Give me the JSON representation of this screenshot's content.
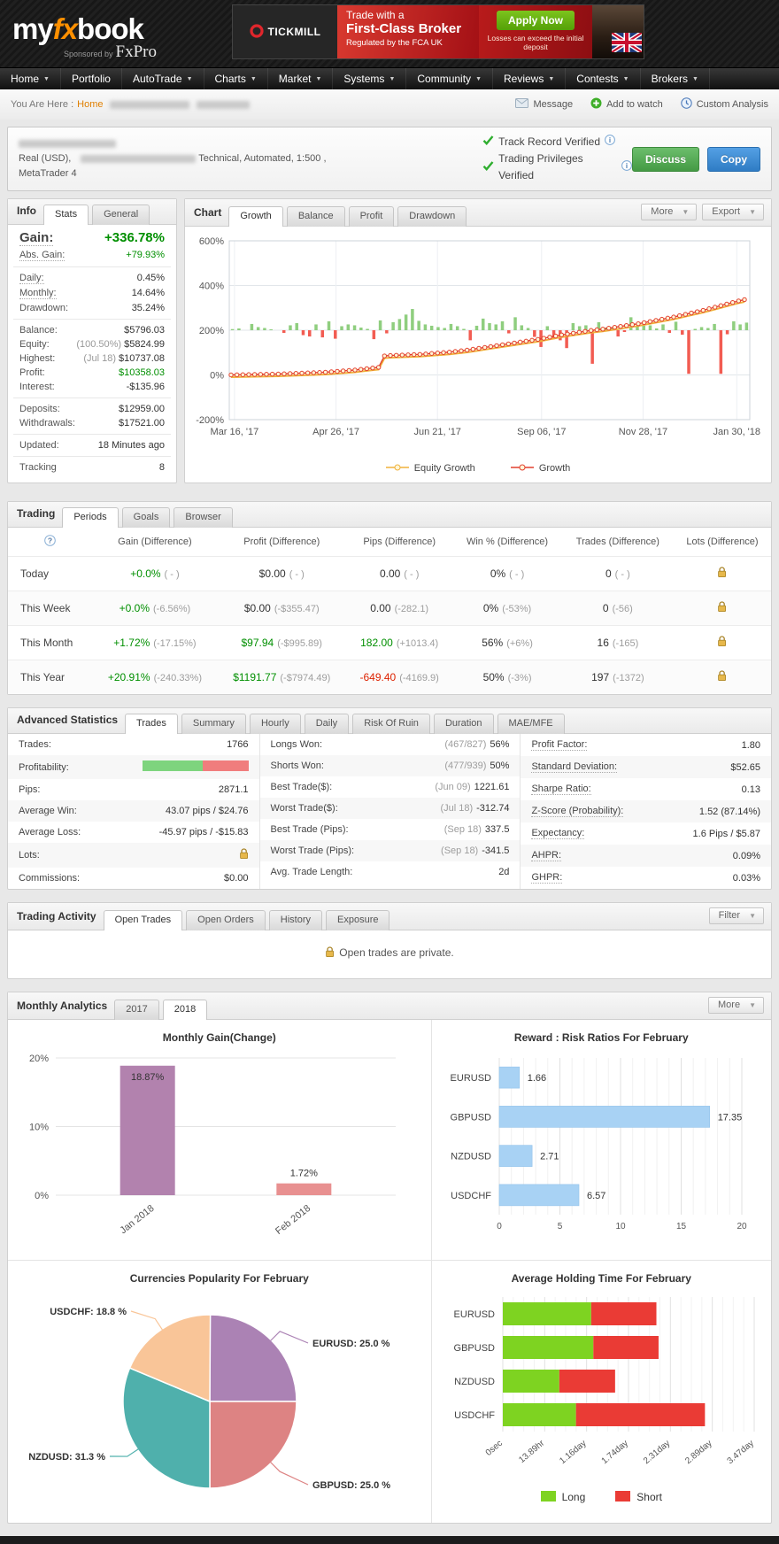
{
  "brand": {
    "logo_my": "my",
    "logo_fx": "fx",
    "logo_book": "book",
    "sponsored": "Sponsored by",
    "sponsor_name": "FxPro"
  },
  "ad": {
    "brand": "TICKMILL",
    "line1": "Trade with a",
    "line2": "First-Class Broker",
    "line3": "Regulated by the FCA UK",
    "cta": "Apply Now",
    "disclaimer": "Losses can exceed the initial deposit"
  },
  "nav": {
    "items": [
      {
        "label": "Home",
        "caret": true
      },
      {
        "label": "Portfolio",
        "caret": false
      },
      {
        "label": "AutoTrade",
        "caret": true
      },
      {
        "label": "Charts",
        "caret": true
      },
      {
        "label": "Market",
        "caret": true
      },
      {
        "label": "Systems",
        "caret": true
      },
      {
        "label": "Community",
        "caret": true
      },
      {
        "label": "Reviews",
        "caret": true
      },
      {
        "label": "Contests",
        "caret": true
      },
      {
        "label": "Brokers",
        "caret": true
      }
    ]
  },
  "breadcrumb": {
    "prefix": "You Are Here :",
    "home": "Home",
    "actions": [
      {
        "label": "Message",
        "icon": "envelope-icon"
      },
      {
        "label": "Add to watch",
        "icon": "add-icon"
      },
      {
        "label": "Custom Analysis",
        "icon": "analysis-icon"
      }
    ]
  },
  "account": {
    "meta1": "Real (USD),",
    "meta2": "Technical, Automated, 1:500 , MetaTrader 4",
    "verified1": "Track Record Verified",
    "verified2": "Trading Privileges Verified",
    "discuss": "Discuss",
    "copy": "Copy"
  },
  "info": {
    "title": "Info",
    "tabs": [
      "Stats",
      "General"
    ],
    "active_tab": "Stats",
    "groups": [
      [
        {
          "label": "Gain:",
          "value": "+336.78%",
          "cls": "green",
          "dotted": true,
          "big": true
        },
        {
          "label": "Abs. Gain:",
          "value": "+79.93%",
          "cls": "green",
          "dotted": true
        }
      ],
      [
        {
          "label": "Daily:",
          "value": "0.45%",
          "dotted": true
        },
        {
          "label": "Monthly:",
          "value": "14.64%",
          "dotted": true
        },
        {
          "label": "Drawdown:",
          "value": "35.24%"
        }
      ],
      [
        {
          "label": "Balance:",
          "value": "$5796.03"
        },
        {
          "label": "Equity:",
          "pre": "(100.50%)",
          "value": "$5824.99"
        },
        {
          "label": "Highest:",
          "pre": "(Jul 18)",
          "value": "$10737.08"
        },
        {
          "label": "Profit:",
          "value": "$10358.03",
          "cls": "green"
        },
        {
          "label": "Interest:",
          "value": "-$135.96"
        }
      ],
      [
        {
          "label": "Deposits:",
          "value": "$12959.00"
        },
        {
          "label": "Withdrawals:",
          "value": "$17521.00"
        }
      ],
      [
        {
          "label": "Updated:",
          "value": "18 Minutes ago"
        }
      ],
      [
        {
          "label": "Tracking",
          "value": "8"
        }
      ]
    ]
  },
  "chart_panel": {
    "title": "Chart",
    "tabs": [
      "Growth",
      "Balance",
      "Profit",
      "Drawdown"
    ],
    "active_tab": "Growth",
    "more": "More",
    "export": "Export"
  },
  "trading": {
    "title": "Trading",
    "tabs": [
      "Periods",
      "Goals",
      "Browser"
    ],
    "active_tab": "Periods",
    "columns": [
      "Gain (Difference)",
      "Profit (Difference)",
      "Pips (Difference)",
      "Win % (Difference)",
      "Trades (Difference)",
      "Lots (Difference)"
    ],
    "rows": [
      {
        "period": "Today",
        "cells": [
          {
            "main": "+0.0%",
            "diff": "( - )",
            "cls": "green"
          },
          {
            "main": "$0.00",
            "diff": "( - )"
          },
          {
            "main": "0.00",
            "diff": "( - )"
          },
          {
            "main": "0%",
            "diff": "( - )"
          },
          {
            "main": "0",
            "diff": "( - )"
          }
        ]
      },
      {
        "period": "This Week",
        "cells": [
          {
            "main": "+0.0%",
            "diff": "(-6.56%)",
            "cls": "green"
          },
          {
            "main": "$0.00",
            "diff": "(-$355.47)"
          },
          {
            "main": "0.00",
            "diff": "(-282.1)"
          },
          {
            "main": "0%",
            "diff": "(-53%)"
          },
          {
            "main": "0",
            "diff": "(-56)"
          }
        ]
      },
      {
        "period": "This Month",
        "cells": [
          {
            "main": "+1.72%",
            "diff": "(-17.15%)",
            "cls": "green"
          },
          {
            "main": "$97.94",
            "diff": "(-$995.89)",
            "cls": "green"
          },
          {
            "main": "182.00",
            "diff": "(+1013.4)",
            "cls": "green"
          },
          {
            "main": "56%",
            "diff": "(+6%)"
          },
          {
            "main": "16",
            "diff": "(-165)"
          }
        ]
      },
      {
        "period": "This Year",
        "cells": [
          {
            "main": "+20.91%",
            "diff": "(-240.33%)",
            "cls": "green"
          },
          {
            "main": "$1191.77",
            "diff": "(-$7974.49)",
            "cls": "green"
          },
          {
            "main": "-649.40",
            "diff": "(-4169.9)",
            "cls": "red"
          },
          {
            "main": "50%",
            "diff": "(-3%)"
          },
          {
            "main": "197",
            "diff": "(-1372)"
          }
        ]
      }
    ]
  },
  "advanced": {
    "title": "Advanced Statistics",
    "tabs": [
      "Trades",
      "Summary",
      "Hourly",
      "Daily",
      "Risk Of Ruin",
      "Duration",
      "MAE/MFE"
    ],
    "active_tab": "Trades",
    "col1": [
      {
        "label": "Trades:",
        "value": "1766"
      },
      {
        "label": "Profitability:",
        "widget": "profitability",
        "win_pct": 57
      },
      {
        "label": "Pips:",
        "value": "2871.1"
      },
      {
        "label": "Average Win:",
        "value": "43.07 pips / $24.76"
      },
      {
        "label": "Average Loss:",
        "value": "-45.97 pips / -$15.83"
      },
      {
        "label": "Lots:",
        "widget": "lock"
      },
      {
        "label": "Commissions:",
        "value": "$0.00"
      }
    ],
    "col2": [
      {
        "label": "Longs Won:",
        "pre": "(467/827)",
        "value": "56%"
      },
      {
        "label": "Shorts Won:",
        "pre": "(477/939)",
        "value": "50%"
      },
      {
        "label": "Best Trade($):",
        "pre": "(Jun 09)",
        "value": "1221.61"
      },
      {
        "label": "Worst Trade($):",
        "pre": "(Jul 18)",
        "value": "-312.74"
      },
      {
        "label": "Best Trade (Pips):",
        "pre": "(Sep 18)",
        "value": "337.5"
      },
      {
        "label": "Worst Trade (Pips):",
        "pre": "(Sep 18)",
        "value": "-341.5"
      },
      {
        "label": "Avg. Trade Length:",
        "value": "2d"
      }
    ],
    "col3": [
      {
        "label": "Profit Factor:",
        "value": "1.80",
        "dotted": true
      },
      {
        "label": "Standard Deviation:",
        "value": "$52.65",
        "dotted": true
      },
      {
        "label": "Sharpe Ratio:",
        "value": "0.13",
        "dotted": true
      },
      {
        "label": "Z-Score (Probability):",
        "value": "1.52 (87.14%)",
        "dotted": true
      },
      {
        "label": "Expectancy:",
        "value": "1.6 Pips / $5.87",
        "dotted": true
      },
      {
        "label": "AHPR:",
        "value": "0.09%",
        "dotted": true
      },
      {
        "label": "GHPR:",
        "value": "0.03%",
        "dotted": true
      }
    ]
  },
  "activity": {
    "title": "Trading Activity",
    "tabs": [
      "Open Trades",
      "Open Orders",
      "History",
      "Exposure"
    ],
    "active_tab": "Open Trades",
    "filter": "Filter",
    "message": "Open trades are private."
  },
  "monthly": {
    "title": "Monthly Analytics",
    "tabs": [
      "2017",
      "2018"
    ],
    "active_tab": "2018",
    "more": "More"
  },
  "chart_data": [
    {
      "id": "growth",
      "type": "line+bar",
      "title": "Growth",
      "ylim": [
        -200,
        600
      ],
      "y_ticks": [
        {
          "v": 600,
          "label": "600%"
        },
        {
          "v": 400,
          "label": "400%"
        },
        {
          "v": 200,
          "label": "200%"
        },
        {
          "v": 0,
          "label": "0%"
        },
        {
          "v": -200,
          "label": "-200%"
        }
      ],
      "x_ticks": [
        {
          "f": 0.01,
          "label": "Mar 16, '17"
        },
        {
          "f": 0.205,
          "label": "Apr 26, '17"
        },
        {
          "f": 0.4,
          "label": "Jun 21, '17"
        },
        {
          "f": 0.6,
          "label": "Sep 06, '17"
        },
        {
          "f": 0.795,
          "label": "Nov 28, '17"
        },
        {
          "f": 0.975,
          "label": "Jan 30, '18"
        }
      ],
      "series": [
        {
          "name": "Equity Growth",
          "color": "#f0b23c"
        },
        {
          "name": "Growth",
          "color": "#e2402e"
        }
      ],
      "line_values": [
        0,
        0.5,
        1,
        1.5,
        2,
        2.5,
        3,
        3.5,
        4,
        5,
        6,
        7,
        8,
        9,
        10,
        11,
        12,
        14,
        16,
        18,
        20,
        22,
        25,
        28,
        31,
        34,
        85,
        87,
        88,
        89,
        90,
        91,
        92,
        94,
        96,
        98,
        100,
        102,
        105,
        108,
        111,
        115,
        119,
        123,
        127,
        131,
        135,
        139,
        143,
        147,
        151,
        155,
        159,
        164,
        169,
        174,
        179,
        183,
        187,
        191,
        195,
        199,
        202,
        205,
        209,
        213,
        217,
        221,
        225,
        229,
        234,
        239,
        244,
        249,
        254,
        259,
        265,
        271,
        277,
        283,
        289,
        296,
        303,
        310,
        317,
        324,
        331,
        336.78
      ],
      "bar_baseline": 200,
      "bar_colors": {
        "pos": "#8fce7f",
        "neg": "#f25c52"
      },
      "bars": [
        5,
        8,
        0,
        28,
        14,
        10,
        4,
        0,
        -12,
        22,
        32,
        -22,
        -28,
        26,
        -32,
        40,
        -38,
        18,
        26,
        22,
        12,
        6,
        -40,
        44,
        -14,
        36,
        50,
        70,
        95,
        42,
        26,
        20,
        14,
        10,
        28,
        18,
        6,
        -45,
        20,
        52,
        32,
        26,
        40,
        -14,
        58,
        22,
        10,
        -30,
        -75,
        18,
        -40,
        -45,
        -80,
        32,
        18,
        22,
        -150,
        36,
        12,
        10,
        -28,
        -8,
        58,
        18,
        20,
        22,
        8,
        26,
        -12,
        38,
        -20,
        -195,
        6,
        14,
        10,
        28,
        -195,
        -18,
        40,
        26,
        34
      ]
    },
    {
      "id": "monthly_gain",
      "type": "bar",
      "title": "Monthly Gain(Change)",
      "categories": [
        "Jan 2018",
        "Feb 2018"
      ],
      "values": [
        18.87,
        1.72
      ],
      "labels": [
        "18.87%",
        "1.72%"
      ],
      "colors": [
        "#b282ae",
        "#e89090"
      ],
      "ylim": [
        0,
        20
      ],
      "y_ticks": [
        {
          "v": 0,
          "label": "0%"
        },
        {
          "v": 10,
          "label": "10%"
        },
        {
          "v": 20,
          "label": "20%"
        }
      ]
    },
    {
      "id": "reward_risk",
      "type": "hbar",
      "title": "Reward : Risk Ratios For February",
      "categories": [
        "EURUSD",
        "GBPUSD",
        "NZDUSD",
        "USDCHF"
      ],
      "values": [
        1.66,
        17.35,
        2.71,
        6.57
      ],
      "labels": [
        "1.66",
        "17.35",
        "2.71",
        "6.57"
      ],
      "color": "#a8d2f4",
      "xlim": [
        0,
        20
      ],
      "x_ticks": [
        0,
        5,
        10,
        15,
        20
      ]
    },
    {
      "id": "currency_popularity",
      "type": "pie",
      "title": "Currencies Popularity For February",
      "slices": [
        {
          "label": "EURUSD",
          "pct": 25.0,
          "color": "#ab82b4",
          "text": "EURUSD: 25.0 %"
        },
        {
          "label": "GBPUSD",
          "pct": 25.0,
          "color": "#dd8383",
          "text": "GBPUSD: 25.0 %"
        },
        {
          "label": "NZDUSD",
          "pct": 31.3,
          "color": "#4fb0ac",
          "text": "NZDUSD: 31.3 %"
        },
        {
          "label": "USDCHF",
          "pct": 18.8,
          "color": "#f9c598",
          "text": "USDCHF: 18.8 %"
        }
      ]
    },
    {
      "id": "holding_time",
      "type": "stacked_hbar",
      "title": "Average Holding Time For February",
      "categories": [
        "EURUSD",
        "GBPUSD",
        "NZDUSD",
        "USDCHF"
      ],
      "series": [
        {
          "name": "Long",
          "color": "#7ed321",
          "values": [
            1.22,
            1.25,
            0.78,
            1.01
          ]
        },
        {
          "name": "Short",
          "color": "#ea3b35",
          "values": [
            0.9,
            0.9,
            0.77,
            1.78
          ]
        }
      ],
      "xlim": [
        0,
        3.47
      ],
      "x_ticks": [
        "0sec",
        "13.89hr",
        "1.16day",
        "1.74day",
        "2.31day",
        "2.89day",
        "3.47day"
      ]
    }
  ]
}
